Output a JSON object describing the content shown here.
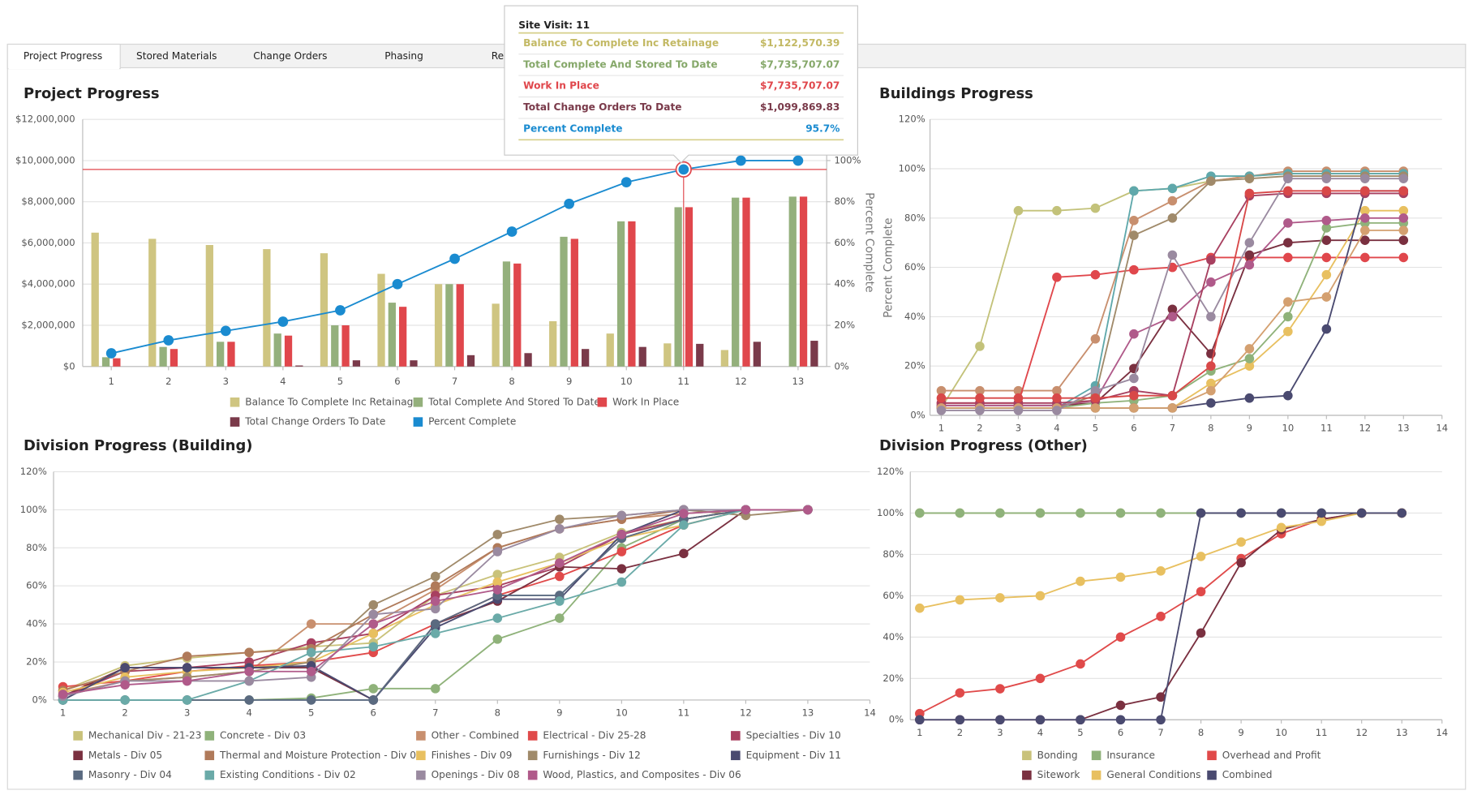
{
  "tabs": [
    "Project Progress",
    "Stored Materials",
    "Change Orders",
    "Phasing",
    "Rec"
  ],
  "tooltip": {
    "title": "Site Visit: 11",
    "rows": [
      {
        "label": "Balance To Complete Inc Retainage",
        "value": "$1,122,570.39",
        "color": "#c3b964"
      },
      {
        "label": "Total Complete And Stored To Date",
        "value": "$7,735,707.07",
        "color": "#86a86a"
      },
      {
        "label": "Work In Place",
        "value": "$7,735,707.07",
        "color": "#e0474c"
      },
      {
        "label": "Total Change Orders To Date",
        "value": "$1,099,869.83",
        "color": "#7a3a4a"
      },
      {
        "label": "Percent Complete",
        "value": "95.7%",
        "color": "#1a8bd0"
      }
    ]
  },
  "chart_data": [
    {
      "type": "bar",
      "title": "Project Progress",
      "categories": [
        "1",
        "2",
        "3",
        "4",
        "5",
        "6",
        "7",
        "8",
        "9",
        "10",
        "11",
        "12",
        "13"
      ],
      "ylim": [
        0,
        12000000
      ],
      "yticks": [
        {
          "value": 0,
          "label": "$0"
        },
        {
          "value": 2000000,
          "label": "$2,000,000"
        },
        {
          "value": 4000000,
          "label": "$4,000,000"
        },
        {
          "value": 6000000,
          "label": "$6,000,000"
        },
        {
          "value": 8000000,
          "label": "$8,000,000"
        },
        {
          "value": 10000000,
          "label": "$10,000,000"
        },
        {
          "value": 12000000,
          "label": "$12,000,000"
        }
      ],
      "y2lim": [
        0,
        120
      ],
      "y2ticks": [
        {
          "value": 0,
          "label": "0%"
        },
        {
          "value": 20,
          "label": "20%"
        },
        {
          "value": 40,
          "label": "40%"
        },
        {
          "value": 60,
          "label": "60%"
        },
        {
          "value": 80,
          "label": "80%"
        },
        {
          "value": 100,
          "label": "100%"
        }
      ],
      "y2_label": "Percent Complete",
      "grid": true,
      "series": [
        {
          "name": "Balance To Complete Inc Retainage",
          "color": "#cfc581",
          "values": [
            6500000,
            6200000,
            5900000,
            5700000,
            5500000,
            4500000,
            4000000,
            3050000,
            2200000,
            1600000,
            1122570.39,
            800000,
            0
          ]
        },
        {
          "name": "Total Complete And Stored To Date",
          "color": "#94b07c",
          "values": [
            450000,
            950000,
            1200000,
            1600000,
            2000000,
            3100000,
            4000000,
            5100000,
            6300000,
            7050000,
            7735707.07,
            8200000,
            8250000
          ]
        },
        {
          "name": "Work In Place",
          "color": "#e0474c",
          "values": [
            400000,
            850000,
            1200000,
            1500000,
            2000000,
            2900000,
            4000000,
            5000000,
            6200000,
            7050000,
            7735707.07,
            8200000,
            8250000
          ]
        },
        {
          "name": "Total Change Orders To Date",
          "color": "#7a3a4a",
          "values": [
            0,
            0,
            0,
            50000,
            300000,
            300000,
            550000,
            650000,
            850000,
            950000,
            1099869.83,
            1200000,
            1250000
          ]
        },
        {
          "name": "Percent Complete",
          "color": "#1a8bd0",
          "type": "line",
          "axis": "y2",
          "values": [
            6.4,
            12.7,
            17.3,
            21.8,
            27.3,
            40,
            52.3,
            65.5,
            79,
            89.5,
            95.7,
            100,
            100
          ]
        }
      ]
    },
    {
      "type": "line",
      "title": "Buildings Progress",
      "y_label": "Percent Complete",
      "x": [
        1,
        2,
        3,
        4,
        5,
        6,
        7,
        8,
        9,
        10,
        11,
        12,
        13
      ],
      "xlim": [
        1,
        14
      ],
      "xticks": [
        1,
        2,
        3,
        4,
        5,
        6,
        7,
        8,
        9,
        10,
        11,
        12,
        13,
        14
      ],
      "ylim": [
        0,
        120
      ],
      "yticks": [
        {
          "value": 0,
          "label": "0%"
        },
        {
          "value": 20,
          "label": "20%"
        },
        {
          "value": 40,
          "label": "40%"
        },
        {
          "value": 60,
          "label": "60%"
        },
        {
          "value": 80,
          "label": "80%"
        },
        {
          "value": 100,
          "label": "100%"
        },
        {
          "value": 120,
          "label": "120%"
        }
      ],
      "grid": true,
      "series": [
        {
          "color": "#c3c27a",
          "values": [
            3,
            28,
            83,
            83,
            84,
            91,
            92,
            95,
            97,
            98,
            98,
            98,
            98
          ]
        },
        {
          "color": "#c88f6e",
          "values": [
            10,
            10,
            10,
            10,
            31,
            79,
            87,
            95,
            97,
            99,
            99,
            99,
            99
          ]
        },
        {
          "color": "#e0474c",
          "values": [
            5,
            5,
            5,
            56,
            57,
            59,
            60,
            64,
            64,
            64,
            64,
            64,
            64
          ]
        },
        {
          "color": "#5fa8ab",
          "values": [
            3,
            3,
            3,
            3,
            12,
            91,
            92,
            97,
            97,
            98,
            98,
            98,
            98
          ]
        },
        {
          "color": "#7a3040",
          "values": [
            4,
            4,
            4,
            4,
            5,
            19,
            43,
            25,
            65,
            70,
            71,
            71,
            71
          ]
        },
        {
          "color": "#e8c060",
          "values": [
            3,
            3,
            3,
            3,
            3,
            3,
            3,
            13,
            20,
            34,
            57,
            83,
            83
          ]
        },
        {
          "color": "#8fb27a",
          "values": [
            3,
            3,
            3,
            3,
            5,
            6,
            8,
            18,
            23,
            40,
            76,
            78,
            78
          ]
        },
        {
          "color": "#b05a8a",
          "values": [
            4,
            4,
            4,
            4,
            6,
            33,
            40,
            54,
            61,
            78,
            79,
            80,
            80
          ]
        },
        {
          "color": "#4a4a70",
          "values": [
            3,
            3,
            3,
            3,
            3,
            3,
            3,
            5,
            7,
            8,
            35,
            91,
            91
          ]
        },
        {
          "color": "#a84060",
          "values": [
            5,
            5,
            5,
            5,
            6,
            10,
            8,
            63,
            89,
            90,
            90,
            90,
            90
          ]
        },
        {
          "color": "#a08a6a",
          "values": [
            3,
            3,
            3,
            3,
            8,
            73,
            80,
            95,
            96,
            97,
            97,
            97,
            97
          ]
        },
        {
          "color": "#d4a070",
          "values": [
            3,
            3,
            3,
            3,
            3,
            3,
            3,
            10,
            27,
            46,
            48,
            75,
            75
          ]
        },
        {
          "color": "#9a8aa0",
          "values": [
            2,
            2,
            2,
            2,
            10,
            15,
            65,
            40,
            70,
            96,
            96,
            96,
            96
          ]
        },
        {
          "color": "#d84848",
          "values": [
            7,
            7,
            7,
            7,
            7,
            8,
            8,
            20,
            90,
            91,
            91,
            91,
            91
          ]
        }
      ]
    },
    {
      "type": "line",
      "title": "Division Progress (Building)",
      "x": [
        1,
        2,
        3,
        4,
        5,
        6,
        7,
        8,
        9,
        10,
        11,
        12,
        13
      ],
      "xlim": [
        1,
        14
      ],
      "xticks": [
        1,
        2,
        3,
        4,
        5,
        6,
        7,
        8,
        9,
        10,
        11,
        12,
        13,
        14
      ],
      "ylim": [
        0,
        120
      ],
      "yticks": [
        {
          "value": 0,
          "label": "0%"
        },
        {
          "value": 20,
          "label": "20%"
        },
        {
          "value": 40,
          "label": "40%"
        },
        {
          "value": 60,
          "label": "60%"
        },
        {
          "value": 80,
          "label": "80%"
        },
        {
          "value": 100,
          "label": "100%"
        },
        {
          "value": 120,
          "label": "120%"
        }
      ],
      "grid": true,
      "series": [
        {
          "name": "Mechanical Div - 21-23",
          "color": "#c9c27a",
          "values": [
            5,
            18,
            22,
            25,
            28,
            30,
            55,
            66,
            75,
            88,
            95,
            100,
            100
          ]
        },
        {
          "name": "Concrete - Div 03",
          "color": "#8fb27a",
          "values": [
            0,
            0,
            0,
            0,
            1,
            6,
            6,
            32,
            43,
            80,
            95,
            100,
            100
          ]
        },
        {
          "name": "Other - Combined",
          "color": "#c88f6e",
          "values": [
            3,
            10,
            12,
            15,
            40,
            40,
            58,
            80,
            90,
            95,
            98,
            100,
            100
          ]
        },
        {
          "name": "Electrical - Div 25-28",
          "color": "#e04a4a",
          "values": [
            7,
            10,
            15,
            18,
            20,
            25,
            40,
            55,
            65,
            78,
            92,
            100,
            100
          ]
        },
        {
          "name": "Specialties - Div 10",
          "color": "#a84060",
          "values": [
            2,
            15,
            17,
            20,
            30,
            35,
            55,
            60,
            70,
            87,
            95,
            100,
            100
          ]
        },
        {
          "name": "Metals - Div 05",
          "color": "#7a3040",
          "values": [
            2,
            17,
            17,
            17,
            17,
            0,
            40,
            52,
            70,
            69,
            77,
            100,
            100
          ]
        },
        {
          "name": "Thermal and Moisture Protection - Div 07",
          "color": "#b07a5a",
          "values": [
            5,
            15,
            23,
            25,
            27,
            45,
            60,
            80,
            90,
            95,
            100,
            100,
            100
          ]
        },
        {
          "name": "Finishes - Div 09",
          "color": "#e8c060",
          "values": [
            4,
            12,
            15,
            17,
            20,
            35,
            50,
            62,
            72,
            85,
            92,
            100,
            100
          ]
        },
        {
          "name": "Furnishings - Div 12",
          "color": "#a08a6a",
          "values": [
            2,
            10,
            12,
            15,
            20,
            50,
            65,
            87,
            95,
            97,
            100,
            97,
            100
          ]
        },
        {
          "name": "Equipment - Div 11",
          "color": "#4a4a70",
          "values": [
            0,
            17,
            17,
            17,
            18,
            0,
            38,
            53,
            53,
            87,
            100,
            100,
            100
          ]
        },
        {
          "name": "Masonry - Div 04",
          "color": "#5a6a80",
          "values": [
            0,
            0,
            0,
            0,
            0,
            0,
            40,
            55,
            55,
            85,
            95,
            100,
            100
          ]
        },
        {
          "name": "Existing Conditions - Div 02",
          "color": "#6aaaa8",
          "values": [
            0,
            0,
            0,
            10,
            25,
            28,
            35,
            43,
            52,
            62,
            92,
            100,
            100
          ]
        },
        {
          "name": "Openings - Div 08",
          "color": "#9a8aa0",
          "values": [
            2,
            10,
            10,
            10,
            12,
            45,
            48,
            78,
            90,
            97,
            100,
            100,
            100
          ]
        },
        {
          "name": "Wood, Plastics, and Composites - Div 06",
          "color": "#b05a8a",
          "values": [
            3,
            8,
            10,
            15,
            15,
            40,
            52,
            58,
            72,
            87,
            98,
            100,
            100
          ]
        }
      ]
    },
    {
      "type": "line",
      "title": "Division Progress (Other)",
      "x": [
        1,
        2,
        3,
        4,
        5,
        6,
        7,
        8,
        9,
        10,
        11,
        12,
        13
      ],
      "xlim": [
        1,
        14
      ],
      "xticks": [
        1,
        2,
        3,
        4,
        5,
        6,
        7,
        8,
        9,
        10,
        11,
        12,
        13,
        14
      ],
      "ylim": [
        0,
        120
      ],
      "yticks": [
        {
          "value": 0,
          "label": "0%"
        },
        {
          "value": 20,
          "label": "20%"
        },
        {
          "value": 40,
          "label": "40%"
        },
        {
          "value": 60,
          "label": "60%"
        },
        {
          "value": 80,
          "label": "80%"
        },
        {
          "value": 100,
          "label": "100%"
        },
        {
          "value": 120,
          "label": "120%"
        }
      ],
      "grid": true,
      "series": [
        {
          "name": "Bonding",
          "color": "#c9c27a",
          "values": [
            100,
            100,
            100,
            100,
            100,
            100,
            100,
            100,
            100,
            100,
            100,
            100,
            100
          ]
        },
        {
          "name": "Insurance",
          "color": "#8fb27a",
          "values": [
            100,
            100,
            100,
            100,
            100,
            100,
            100,
            100,
            100,
            100,
            100,
            100,
            100
          ]
        },
        {
          "name": "Overhead and Profit",
          "color": "#e04a4a",
          "values": [
            3,
            13,
            15,
            20,
            27,
            40,
            50,
            62,
            78,
            90,
            97,
            100,
            100
          ]
        },
        {
          "name": "Sitework",
          "color": "#7a3040",
          "values": [
            0,
            0,
            0,
            0,
            0,
            7,
            11,
            42,
            76,
            92,
            97,
            100,
            100
          ]
        },
        {
          "name": "General Conditions",
          "color": "#e8c060",
          "values": [
            54,
            58,
            59,
            60,
            67,
            69,
            72,
            79,
            86,
            93,
            96,
            100,
            100
          ]
        },
        {
          "name": "Combined",
          "color": "#4a4a70",
          "values": [
            0,
            0,
            0,
            0,
            0,
            0,
            0,
            100,
            100,
            100,
            100,
            100,
            100
          ]
        }
      ]
    }
  ]
}
